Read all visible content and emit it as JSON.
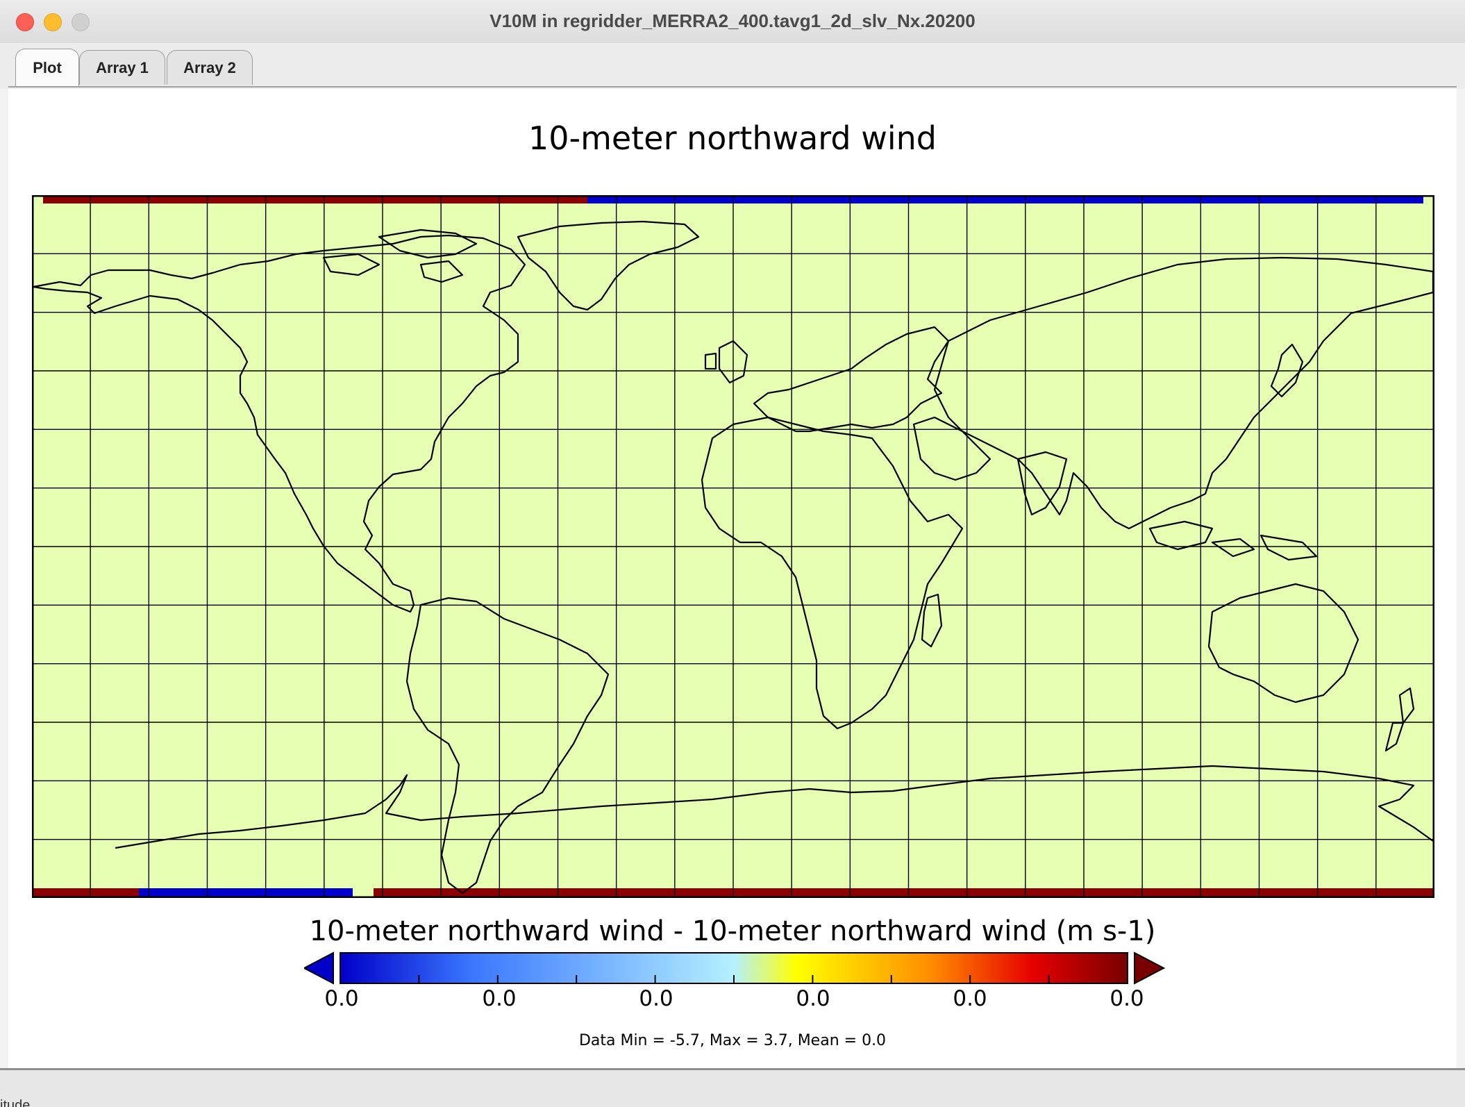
{
  "window": {
    "title": "V10M in regridder_MERRA2_400.tavg1_2d_slv_Nx.20200"
  },
  "tabs": [
    {
      "label": "Plot",
      "active": true
    },
    {
      "label": "Array 1",
      "active": false
    },
    {
      "label": "Array 2",
      "active": false
    }
  ],
  "plot": {
    "title": "10-meter northward wind",
    "fill_color": "#e6ffb3",
    "grid": true,
    "colorbar": {
      "title": "10-meter northward wind - 10-meter northward wind (m s-1)",
      "tick_labels": [
        "0.0",
        "0.0",
        "0.0",
        "0.0",
        "0.0",
        "0.0"
      ],
      "colors": [
        "#0000c8",
        "#3c78ff",
        "#b4f0ff",
        "#ffff00",
        "#ff8c00",
        "#e60000",
        "#780000"
      ]
    },
    "stats": "Data Min = -5.7, Max = 3.7, Mean = 0.0"
  },
  "bottom_hint": "itude"
}
